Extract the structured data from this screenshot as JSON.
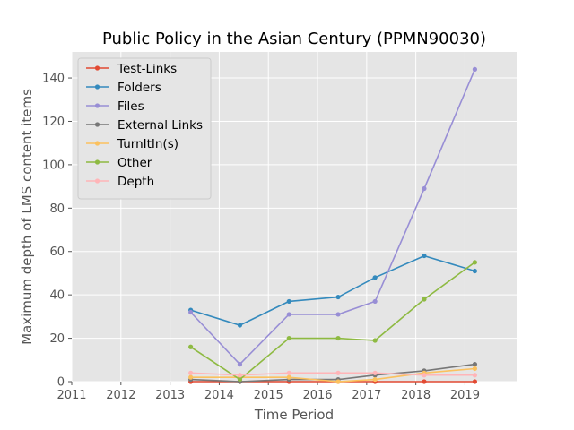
{
  "chart_data": {
    "type": "line",
    "title": "Public Policy in the Asian Century (PPMN90030)",
    "xlabel": "Time Period",
    "ylabel": "Maximum depth of LMS content items",
    "xlim": [
      2011,
      2020.05
    ],
    "ylim": [
      0,
      152
    ],
    "x_ticks": [
      "2011",
      "2012",
      "2013",
      "2014",
      "2015",
      "2016",
      "2017",
      "2018",
      "2019"
    ],
    "y_ticks": [
      "0",
      "20",
      "40",
      "60",
      "80",
      "100",
      "120",
      "140"
    ],
    "grid": true,
    "legend": "top-left",
    "x": [
      2013.42,
      2014.42,
      2015.42,
      2016.42,
      2017.17,
      2018.17,
      2019.2
    ],
    "series": [
      {
        "name": "Test-Links",
        "color": "#E24A33",
        "values": [
          0,
          0,
          0,
          0,
          0,
          0,
          0
        ]
      },
      {
        "name": "Folders",
        "color": "#348ABD",
        "values": [
          33,
          26,
          37,
          39,
          48,
          58,
          51
        ]
      },
      {
        "name": "Files",
        "color": "#988ED5",
        "values": [
          32,
          8,
          31,
          31,
          37,
          89,
          144
        ]
      },
      {
        "name": "External Links",
        "color": "#777777",
        "values": [
          1,
          0,
          1,
          1,
          3,
          5,
          8
        ]
      },
      {
        "name": "TurnItIn(s)",
        "color": "#FBC15E",
        "values": [
          2,
          2,
          2,
          0,
          1,
          4,
          6
        ]
      },
      {
        "name": "Other",
        "color": "#8EBA42",
        "values": [
          16,
          1,
          20,
          20,
          19,
          38,
          55
        ]
      },
      {
        "name": "Depth",
        "color": "#FFB5B8",
        "values": [
          4,
          3,
          4,
          4,
          4,
          3,
          3
        ]
      }
    ]
  }
}
